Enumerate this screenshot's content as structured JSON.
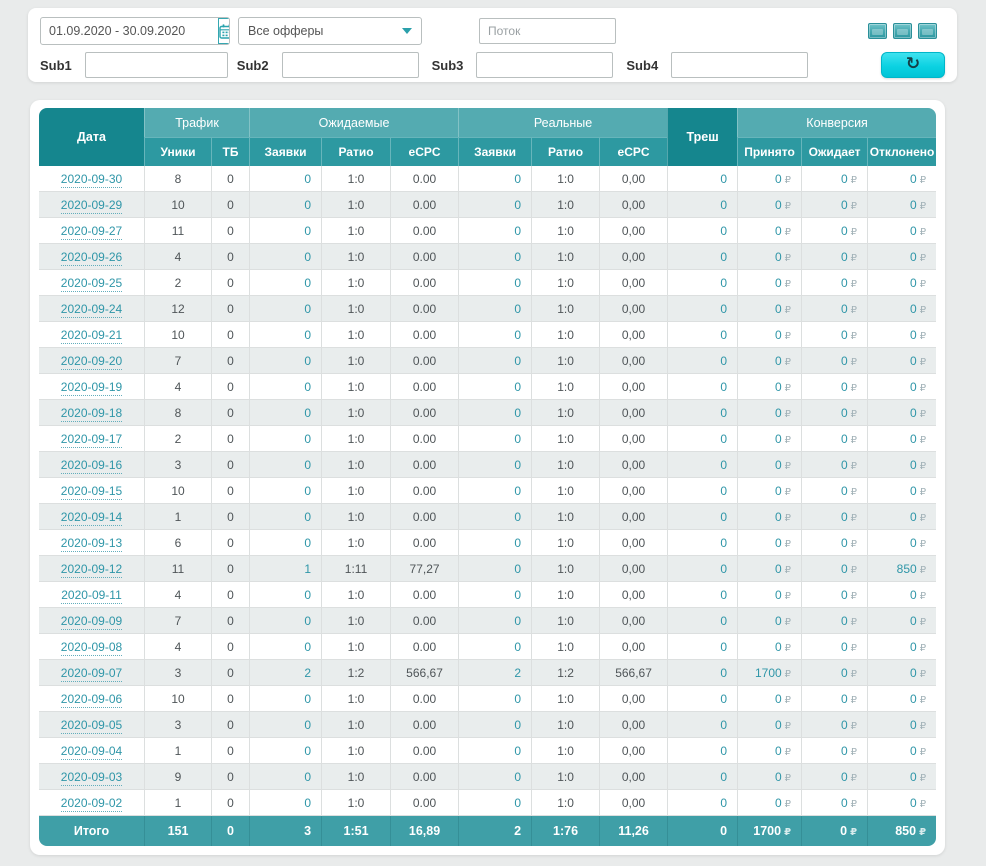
{
  "filters": {
    "date_range": "01.09.2020 - 30.09.2020",
    "offers_selected": "Все офферы",
    "flow_placeholder": "Поток",
    "subs": [
      "Sub1",
      "Sub2",
      "Sub3",
      "Sub4"
    ]
  },
  "table": {
    "header": {
      "groups": [
        {
          "label": "Дата",
          "rowspan": 2
        },
        {
          "label": "Трафик",
          "colspan": 2
        },
        {
          "label": "Ожидаемые",
          "colspan": 3
        },
        {
          "label": "Реальные",
          "colspan": 3
        },
        {
          "label": "Треш",
          "rowspan": 2
        },
        {
          "label": "Конверсия",
          "colspan": 3
        }
      ],
      "subheaders": [
        "Уники",
        "ТБ",
        "Заявки",
        "Ратио",
        "eCPC",
        "Заявки",
        "Ратио",
        "eCPC",
        "Принято",
        "Ожидает",
        "Отклонено"
      ]
    },
    "currency_sign": "₽",
    "rows": [
      [
        "2020-09-30",
        "8",
        "0",
        "0",
        "1:0",
        "0.00",
        "0",
        "1:0",
        "0,00",
        "0",
        "0",
        "0",
        "0"
      ],
      [
        "2020-09-29",
        "10",
        "0",
        "0",
        "1:0",
        "0.00",
        "0",
        "1:0",
        "0,00",
        "0",
        "0",
        "0",
        "0"
      ],
      [
        "2020-09-27",
        "11",
        "0",
        "0",
        "1:0",
        "0.00",
        "0",
        "1:0",
        "0,00",
        "0",
        "0",
        "0",
        "0"
      ],
      [
        "2020-09-26",
        "4",
        "0",
        "0",
        "1:0",
        "0.00",
        "0",
        "1:0",
        "0,00",
        "0",
        "0",
        "0",
        "0"
      ],
      [
        "2020-09-25",
        "2",
        "0",
        "0",
        "1:0",
        "0.00",
        "0",
        "1:0",
        "0,00",
        "0",
        "0",
        "0",
        "0"
      ],
      [
        "2020-09-24",
        "12",
        "0",
        "0",
        "1:0",
        "0.00",
        "0",
        "1:0",
        "0,00",
        "0",
        "0",
        "0",
        "0"
      ],
      [
        "2020-09-21",
        "10",
        "0",
        "0",
        "1:0",
        "0.00",
        "0",
        "1:0",
        "0,00",
        "0",
        "0",
        "0",
        "0"
      ],
      [
        "2020-09-20",
        "7",
        "0",
        "0",
        "1:0",
        "0.00",
        "0",
        "1:0",
        "0,00",
        "0",
        "0",
        "0",
        "0"
      ],
      [
        "2020-09-19",
        "4",
        "0",
        "0",
        "1:0",
        "0.00",
        "0",
        "1:0",
        "0,00",
        "0",
        "0",
        "0",
        "0"
      ],
      [
        "2020-09-18",
        "8",
        "0",
        "0",
        "1:0",
        "0.00",
        "0",
        "1:0",
        "0,00",
        "0",
        "0",
        "0",
        "0"
      ],
      [
        "2020-09-17",
        "2",
        "0",
        "0",
        "1:0",
        "0.00",
        "0",
        "1:0",
        "0,00",
        "0",
        "0",
        "0",
        "0"
      ],
      [
        "2020-09-16",
        "3",
        "0",
        "0",
        "1:0",
        "0.00",
        "0",
        "1:0",
        "0,00",
        "0",
        "0",
        "0",
        "0"
      ],
      [
        "2020-09-15",
        "10",
        "0",
        "0",
        "1:0",
        "0.00",
        "0",
        "1:0",
        "0,00",
        "0",
        "0",
        "0",
        "0"
      ],
      [
        "2020-09-14",
        "1",
        "0",
        "0",
        "1:0",
        "0.00",
        "0",
        "1:0",
        "0,00",
        "0",
        "0",
        "0",
        "0"
      ],
      [
        "2020-09-13",
        "6",
        "0",
        "0",
        "1:0",
        "0.00",
        "0",
        "1:0",
        "0,00",
        "0",
        "0",
        "0",
        "0"
      ],
      [
        "2020-09-12",
        "11",
        "0",
        "1",
        "1:11",
        "77,27",
        "0",
        "1:0",
        "0,00",
        "0",
        "0",
        "0",
        "850"
      ],
      [
        "2020-09-11",
        "4",
        "0",
        "0",
        "1:0",
        "0.00",
        "0",
        "1:0",
        "0,00",
        "0",
        "0",
        "0",
        "0"
      ],
      [
        "2020-09-09",
        "7",
        "0",
        "0",
        "1:0",
        "0.00",
        "0",
        "1:0",
        "0,00",
        "0",
        "0",
        "0",
        "0"
      ],
      [
        "2020-09-08",
        "4",
        "0",
        "0",
        "1:0",
        "0.00",
        "0",
        "1:0",
        "0,00",
        "0",
        "0",
        "0",
        "0"
      ],
      [
        "2020-09-07",
        "3",
        "0",
        "2",
        "1:2",
        "566,67",
        "2",
        "1:2",
        "566,67",
        "0",
        "1700",
        "0",
        "0"
      ],
      [
        "2020-09-06",
        "10",
        "0",
        "0",
        "1:0",
        "0.00",
        "0",
        "1:0",
        "0,00",
        "0",
        "0",
        "0",
        "0"
      ],
      [
        "2020-09-05",
        "3",
        "0",
        "0",
        "1:0",
        "0.00",
        "0",
        "1:0",
        "0,00",
        "0",
        "0",
        "0",
        "0"
      ],
      [
        "2020-09-04",
        "1",
        "0",
        "0",
        "1:0",
        "0.00",
        "0",
        "1:0",
        "0,00",
        "0",
        "0",
        "0",
        "0"
      ],
      [
        "2020-09-03",
        "9",
        "0",
        "0",
        "1:0",
        "0.00",
        "0",
        "1:0",
        "0,00",
        "0",
        "0",
        "0",
        "0"
      ],
      [
        "2020-09-02",
        "1",
        "0",
        "0",
        "1:0",
        "0.00",
        "0",
        "1:0",
        "0,00",
        "0",
        "0",
        "0",
        "0"
      ]
    ],
    "totals": [
      "Итого",
      "151",
      "0",
      "3",
      "1:51",
      "16,89",
      "2",
      "1:76",
      "11,26",
      "0",
      "1700",
      "0",
      "850"
    ]
  }
}
